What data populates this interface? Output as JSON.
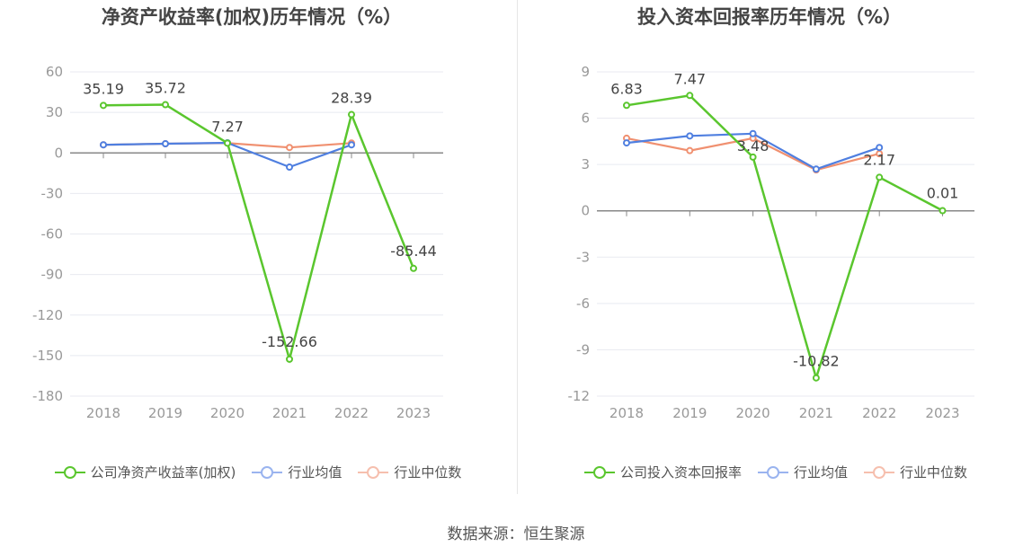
{
  "source": "数据来源：恒生聚源",
  "chart_data": [
    {
      "type": "line",
      "title": "净资产收益率(加权)历年情况（%）",
      "categories": [
        "2018",
        "2019",
        "2020",
        "2021",
        "2022",
        "2023"
      ],
      "yticks": [
        "60",
        "30",
        "0",
        "-30",
        "-60",
        "-90",
        "-120",
        "-150",
        "-180"
      ],
      "ylim": [
        -180,
        60
      ],
      "grid": true,
      "legend_position": "bottom",
      "series": [
        {
          "name": "公司净资产收益率(加权)",
          "color": "#5ac62e",
          "values": [
            35.19,
            35.72,
            7.27,
            -152.66,
            28.39,
            -85.44
          ],
          "labels": [
            "35.19",
            "35.72",
            "7.27",
            "-152.66",
            "28.39",
            "-85.44"
          ]
        },
        {
          "name": "行业均值",
          "color": "#4f7fe0",
          "values": [
            6.0,
            6.8,
            7.5,
            -10.5,
            6.0,
            null
          ]
        },
        {
          "name": "行业中位数",
          "color": "#f09070",
          "values": [
            6.0,
            6.8,
            7.3,
            4.0,
            7.3,
            null
          ]
        }
      ]
    },
    {
      "type": "line",
      "title": "投入资本回报率历年情况（%）",
      "categories": [
        "2018",
        "2019",
        "2020",
        "2021",
        "2022",
        "2023"
      ],
      "yticks": [
        "9",
        "6",
        "3",
        "0",
        "-3",
        "-6",
        "-9",
        "-12"
      ],
      "ylim": [
        -12,
        9
      ],
      "grid": true,
      "legend_position": "bottom",
      "series": [
        {
          "name": "公司投入资本回报率",
          "color": "#5ac62e",
          "values": [
            6.83,
            7.47,
            3.48,
            -10.82,
            2.17,
            0.01
          ],
          "labels": [
            "6.83",
            "7.47",
            "3.48",
            "-10.82",
            "2.17",
            "0.01"
          ]
        },
        {
          "name": "行业均值",
          "color": "#4f7fe0",
          "values": [
            4.4,
            4.85,
            5.0,
            2.7,
            4.1,
            null
          ]
        },
        {
          "name": "行业中位数",
          "color": "#f09070",
          "values": [
            4.7,
            3.9,
            4.7,
            2.65,
            3.7,
            null
          ]
        }
      ]
    }
  ]
}
